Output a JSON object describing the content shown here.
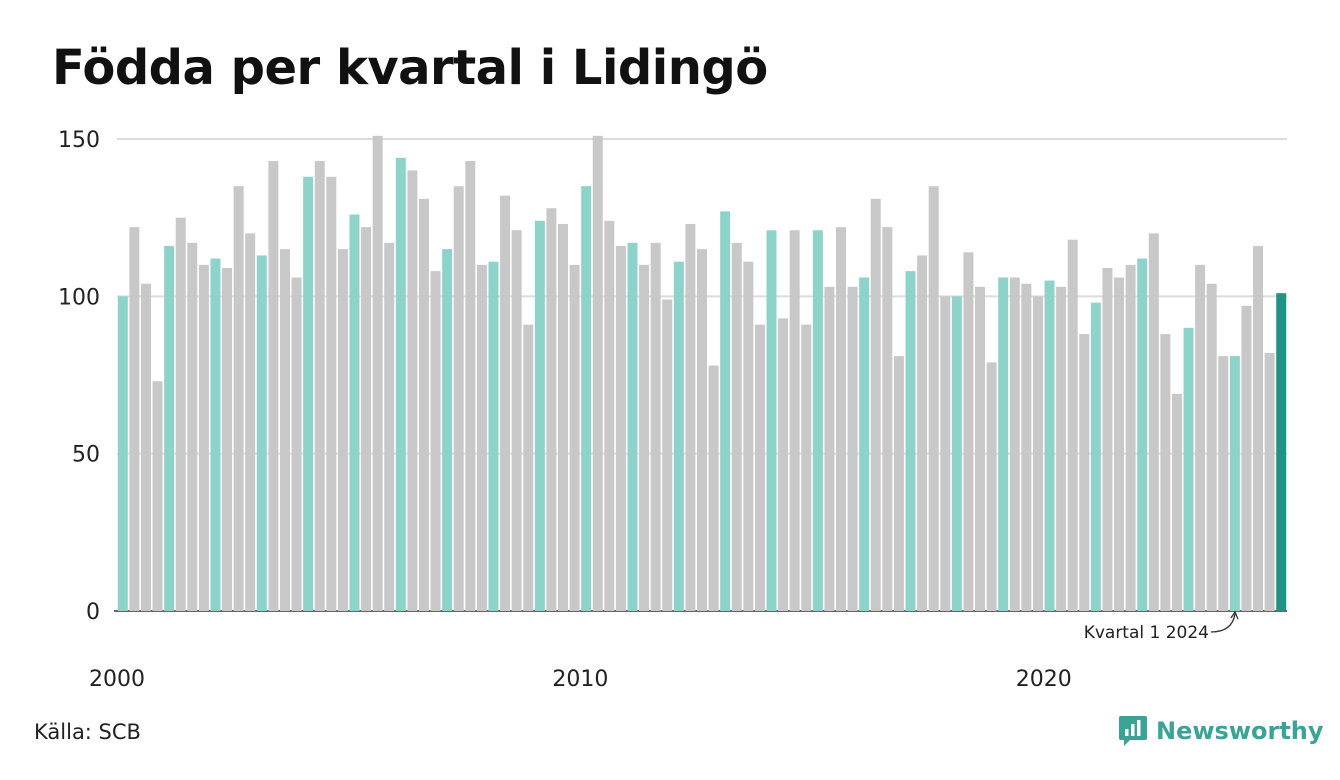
{
  "title": "Födda per kvartal i Lidingö",
  "source": "Källa: SCB",
  "brand": {
    "name": "Newsworthy",
    "icon": "newsworthy-logo-icon"
  },
  "colors": {
    "q1": "#8dd3c9",
    "other": "#c8c8c8",
    "latest": "#1f9384",
    "grid": "#dcdcdc",
    "axis": "#333333"
  },
  "chart_data": {
    "type": "bar",
    "title": "Födda per kvartal i Lidingö",
    "xlabel": "",
    "ylabel": "",
    "ylim": [
      0,
      150
    ],
    "yticks": [
      "0",
      "50",
      "100",
      "150"
    ],
    "xticks": [
      {
        "label": "2000",
        "index": 0
      },
      {
        "label": "2010",
        "index": 40
      },
      {
        "label": "2020",
        "index": 80
      }
    ],
    "start": "2000 Q1",
    "values": [
      100,
      122,
      104,
      73,
      116,
      125,
      117,
      110,
      112,
      109,
      135,
      120,
      113,
      143,
      115,
      106,
      138,
      143,
      138,
      115,
      126,
      122,
      151,
      117,
      144,
      140,
      131,
      108,
      115,
      135,
      143,
      110,
      111,
      132,
      121,
      91,
      124,
      128,
      123,
      110,
      135,
      151,
      124,
      116,
      117,
      110,
      117,
      99,
      111,
      123,
      115,
      78,
      127,
      117,
      111,
      91,
      121,
      93,
      121,
      91,
      121,
      103,
      122,
      103,
      106,
      131,
      122,
      81,
      108,
      113,
      135,
      100,
      100,
      114,
      103,
      79,
      106,
      106,
      104,
      100,
      105,
      103,
      118,
      88,
      98,
      109,
      106,
      110,
      112,
      120,
      88,
      69,
      90,
      110,
      104,
      81,
      81,
      97,
      116,
      82,
      101
    ],
    "annotation": "Kvartal 1 2024"
  }
}
